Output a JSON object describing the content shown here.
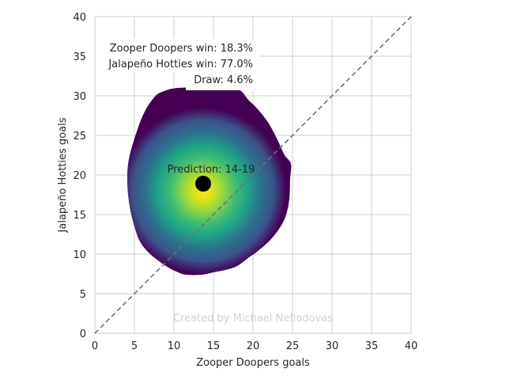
{
  "chart_data": {
    "type": "heatmap",
    "xlabel": "Zooper Doopers goals",
    "ylabel": "Jalapeño Hotties goals",
    "xlim": [
      0,
      40
    ],
    "ylim": [
      0,
      40
    ],
    "x_ticks": [
      0,
      5,
      10,
      15,
      20,
      25,
      30,
      35,
      40
    ],
    "y_ticks": [
      0,
      5,
      10,
      15,
      20,
      25,
      30,
      35,
      40
    ],
    "grid": true,
    "colormap": "viridis",
    "reference_line": {
      "style": "dashed",
      "color": "#707070",
      "from": [
        0,
        0
      ],
      "to": [
        40,
        40
      ]
    },
    "prediction": {
      "x": 13.7,
      "y": 18.9,
      "label": "Prediction: 14-19"
    },
    "density_outline": [
      [
        4.1,
        19.0
      ],
      [
        4.3,
        22.0
      ],
      [
        5.3,
        25.5
      ],
      [
        6.3,
        28.0
      ],
      [
        7.5,
        29.8
      ],
      [
        8.5,
        30.5
      ],
      [
        10.5,
        31.0
      ],
      [
        14.0,
        31.0
      ],
      [
        17.5,
        31.0
      ],
      [
        18.5,
        30.6
      ],
      [
        19.4,
        29.5
      ],
      [
        20.6,
        28.3
      ],
      [
        22.0,
        26.5
      ],
      [
        23.3,
        24.0
      ],
      [
        24.0,
        22.5
      ],
      [
        24.8,
        21.4
      ],
      [
        24.7,
        19.5
      ],
      [
        24.6,
        17.0
      ],
      [
        24.2,
        15.0
      ],
      [
        23.5,
        13.5
      ],
      [
        22.2,
        11.8
      ],
      [
        20.5,
        10.3
      ],
      [
        19.5,
        9.6
      ],
      [
        18.0,
        8.5
      ],
      [
        16.5,
        8.0
      ],
      [
        15.0,
        7.7
      ],
      [
        13.5,
        7.4
      ],
      [
        11.5,
        7.4
      ],
      [
        10.3,
        7.8
      ],
      [
        9.0,
        8.5
      ],
      [
        7.0,
        10.0
      ],
      [
        5.7,
        11.6
      ],
      [
        5.0,
        13.5
      ],
      [
        4.4,
        16.0
      ]
    ],
    "annotations": [
      "Zooper Doopers win: 18.3%",
      "Jalapeño Hotties win: 77.0%",
      "Draw: 4.6%"
    ],
    "watermark": "Created by Michael Nefiodovas"
  }
}
